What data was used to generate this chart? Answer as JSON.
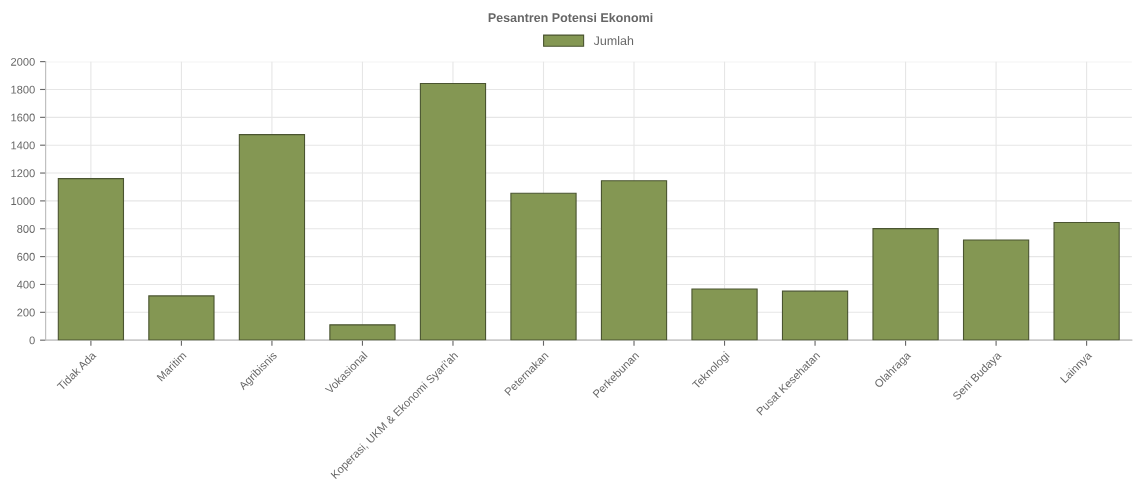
{
  "chart_data": {
    "type": "bar",
    "title": "Pesantren Potensi Ekonomi",
    "categories": [
      "Tidak Ada",
      "Maritim",
      "Agribisnis",
      "Vokasional",
      "Koperasi, UKM & Ekonomi Syari'ah",
      "Peternakan",
      "Perkebunan",
      "Teknologi",
      "Pusat Kesehatan",
      "Olahraga",
      "Seni Budaya",
      "Lainnya"
    ],
    "series": [
      {
        "name": "Jumlah",
        "color": "#849753",
        "values": [
          1160,
          318,
          1476,
          110,
          1843,
          1055,
          1145,
          367,
          352,
          801,
          719,
          845
        ]
      }
    ],
    "ylim": [
      0,
      2000
    ],
    "yticks": [
      0,
      200,
      400,
      600,
      800,
      1000,
      1200,
      1400,
      1600,
      1800,
      2000
    ],
    "grid": true,
    "legend": "top"
  }
}
